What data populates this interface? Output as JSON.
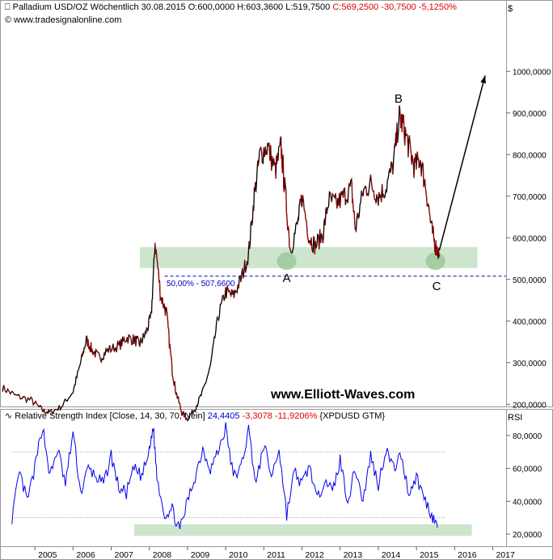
{
  "header": {
    "title": "Palladium USD/OZ Wöchentlich",
    "date": "30.08.2015",
    "ohl": "O:600,0000 H:603,3600 L:519,7500",
    "change": "C:569,2500 -30,7500 -5,1250%",
    "source": "© www.tradesignalonline.com",
    "currency_label": "$"
  },
  "rsi_header": {
    "label": "Relative Strength Index [Close, 14, 30, 70, Nein]",
    "value": "24,4405",
    "change": "-3,3078 -11,9206%",
    "symbol": "{XPDUSD GTM}",
    "axis_label": "RSI"
  },
  "watermark": "www.Elliott-Waves.com",
  "annotations": {
    "wave_a": "A",
    "wave_b": "B",
    "wave_c": "C",
    "fib_label": "50,00% - 507,6600"
  },
  "colors": {
    "price": "#000000",
    "price_down": "#b00000",
    "rsi": "#0000ee",
    "support_zone": "#c8e2c8",
    "fib_line": "#0000cc",
    "header_red": "#e00000",
    "header_blue": "#0000cc"
  },
  "chart_data": [
    {
      "type": "line",
      "title": "Palladium USD/OZ Wöchentlich",
      "ylabel": "$",
      "ylim": [
        140,
        1070
      ],
      "y_ticks": [
        "200,0000",
        "300,0000",
        "400,0000",
        "500,0000",
        "600,0000",
        "700,0000",
        "800,0000",
        "900,0000",
        "1000,0000"
      ],
      "y_tick_values": [
        200,
        300,
        400,
        500,
        600,
        700,
        800,
        900,
        1000
      ],
      "x_ticks": [
        "2005",
        "2006",
        "2007",
        "2008",
        "2009",
        "2010",
        "2011",
        "2012",
        "2013",
        "2014",
        "2015",
        "2016",
        "2017"
      ],
      "x_tick_values": [
        2005,
        2006,
        2007,
        2008,
        2009,
        2010,
        2011,
        2012,
        2013,
        2014,
        2015,
        2016,
        2017
      ],
      "xlim": [
        2004.15,
        2017.35
      ],
      "series": [
        {
          "x": [
            2004.15,
            2004.5,
            2004.9,
            2005.2,
            2005.4,
            2005.7,
            2006.0,
            2006.2,
            2006.35,
            2006.5,
            2006.7,
            2006.9,
            2007.2,
            2007.4,
            2007.6,
            2007.75,
            2007.9,
            2008.05,
            2008.15,
            2008.3,
            2008.45,
            2008.6,
            2008.7,
            2008.85,
            2009.0,
            2009.2,
            2009.4,
            2009.6,
            2009.8,
            2010.0,
            2010.2,
            2010.4,
            2010.6,
            2010.75,
            2010.9,
            2011.1,
            2011.3,
            2011.45,
            2011.55,
            2011.7,
            2011.9,
            2012.0,
            2012.2,
            2012.35,
            2012.55,
            2012.7,
            2012.9,
            2013.1,
            2013.3,
            2013.4,
            2013.6,
            2013.8,
            2014.0,
            2014.2,
            2014.4,
            2014.55,
            2014.65,
            2014.8,
            2014.95,
            2015.1,
            2015.25,
            2015.4,
            2015.5,
            2015.6
          ],
          "y": [
            240,
            220,
            210,
            185,
            180,
            195,
            230,
            300,
            355,
            330,
            310,
            330,
            340,
            360,
            355,
            345,
            370,
            410,
            590,
            460,
            420,
            280,
            230,
            180,
            165,
            190,
            230,
            290,
            410,
            470,
            460,
            500,
            560,
            700,
            800,
            820,
            760,
            820,
            720,
            570,
            640,
            700,
            600,
            580,
            610,
            690,
            680,
            700,
            720,
            620,
            710,
            730,
            700,
            720,
            780,
            890,
            870,
            820,
            770,
            790,
            720,
            620,
            580,
            560
          ]
        }
      ],
      "support_zone": [
        535,
        570
      ],
      "fib_level": 507.66,
      "forecast_arrow": {
        "from": [
          2015.6,
          570
        ],
        "to": [
          2016.8,
          990
        ]
      },
      "wave_points": [
        {
          "label": "A",
          "x": 2011.6,
          "y": 540
        },
        {
          "label": "B",
          "x": 2014.55,
          "y": 905
        },
        {
          "label": "C",
          "x": 2015.5,
          "y": 540
        }
      ]
    },
    {
      "type": "line",
      "title": "Relative Strength Index [Close, 14, 30, 70, Nein]",
      "ylabel": "RSI",
      "ylim": [
        16,
        90
      ],
      "y_ticks": [
        "20,0000",
        "40,0000",
        "60,0000",
        "80,0000"
      ],
      "y_tick_values": [
        20,
        40,
        60,
        80
      ],
      "levels": [
        30,
        70
      ],
      "support_zone": [
        20,
        25
      ],
      "series": [
        {
          "name": "RSI",
          "x": [
            2004.4,
            2004.6,
            2004.8,
            2005.0,
            2005.2,
            2005.4,
            2005.6,
            2005.8,
            2006.0,
            2006.2,
            2006.4,
            2006.6,
            2006.8,
            2007.0,
            2007.2,
            2007.4,
            2007.6,
            2007.8,
            2008.0,
            2008.1,
            2008.2,
            2008.4,
            2008.6,
            2008.8,
            2009.0,
            2009.2,
            2009.4,
            2009.6,
            2009.8,
            2010.0,
            2010.2,
            2010.4,
            2010.6,
            2010.8,
            2011.0,
            2011.2,
            2011.4,
            2011.6,
            2011.8,
            2012.0,
            2012.2,
            2012.4,
            2012.6,
            2012.8,
            2013.0,
            2013.2,
            2013.4,
            2013.6,
            2013.8,
            2014.0,
            2014.2,
            2014.4,
            2014.6,
            2014.8,
            2015.0,
            2015.2,
            2015.4,
            2015.55
          ],
          "y": [
            30,
            57,
            40,
            60,
            86,
            55,
            72,
            50,
            82,
            45,
            60,
            55,
            50,
            68,
            48,
            45,
            60,
            55,
            70,
            86,
            55,
            32,
            35,
            22,
            40,
            55,
            72,
            60,
            70,
            85,
            55,
            60,
            84,
            50,
            75,
            55,
            72,
            32,
            58,
            50,
            62,
            40,
            55,
            45,
            65,
            40,
            60,
            40,
            68,
            50,
            72,
            60,
            68,
            45,
            55,
            42,
            32,
            24
          ]
        }
      ]
    }
  ]
}
